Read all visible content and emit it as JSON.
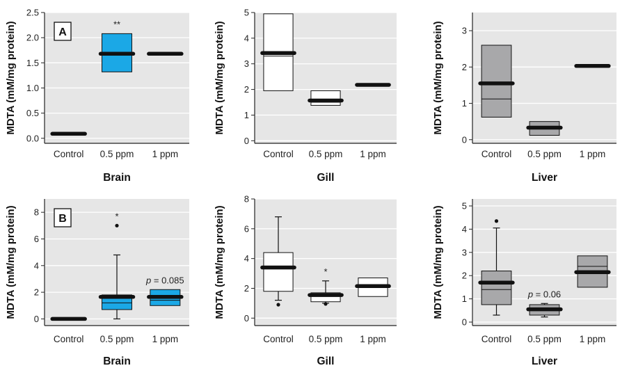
{
  "colors": {
    "plot_bg": "#e6e6e6",
    "grid": "#ffffff",
    "brain_fill": "#1ba8e6",
    "gill_fill": "#ffffff",
    "liver_fill": "#a8a8aa",
    "mean_bar": "#111111"
  },
  "chart_data": [
    {
      "type": "box",
      "panel_label": "A",
      "xlabel": "Brain",
      "ylabel": "MDTA (mM/mg protein)",
      "ylim": [
        -0.1,
        2.5
      ],
      "yticks": [
        0,
        0.5,
        1,
        1.5,
        2,
        2.5
      ],
      "ytick_labels": [
        "0.0",
        "0.5",
        "1.0",
        "1.5",
        "2.0",
        "2.5"
      ],
      "categories": [
        "Control",
        "0.5 ppm",
        "1 ppm"
      ],
      "grid": true,
      "boxes": [
        {
          "q1": 0.09,
          "median": 0.09,
          "q3": 0.09,
          "mean": 0.09
        },
        {
          "q1": 1.32,
          "median": 1.68,
          "q3": 2.08,
          "mean": 1.68,
          "annotation": "**"
        },
        {
          "q1": 1.68,
          "median": 1.68,
          "q3": 1.68,
          "mean": 1.68
        }
      ]
    },
    {
      "type": "box",
      "panel_label": "",
      "xlabel": "Gill",
      "ylabel": "MDTA (mM/mg protein)",
      "ylim": [
        -0.1,
        5
      ],
      "yticks": [
        0,
        1,
        2,
        3,
        4,
        5
      ],
      "ytick_labels": [
        "0",
        "1",
        "2",
        "3",
        "4",
        "5"
      ],
      "categories": [
        "Control",
        "0.5 ppm",
        "1 ppm"
      ],
      "grid": true,
      "boxes": [
        {
          "q1": 1.95,
          "median": 3.3,
          "q3": 4.95,
          "mean": 3.42
        },
        {
          "q1": 1.38,
          "median": 1.5,
          "q3": 1.95,
          "mean": 1.57
        },
        {
          "q1": 2.18,
          "median": 2.18,
          "q3": 2.18,
          "mean": 2.18
        }
      ]
    },
    {
      "type": "box",
      "panel_label": "",
      "xlabel": "Liver",
      "ylabel": "MDTA (mM/mg protein)",
      "ylim": [
        -0.1,
        3.5
      ],
      "yticks": [
        0,
        1,
        2,
        3
      ],
      "ytick_labels": [
        "0",
        "1",
        "2",
        "3"
      ],
      "categories": [
        "Control",
        "0.5 ppm",
        "1 ppm"
      ],
      "grid": true,
      "boxes": [
        {
          "q1": 0.62,
          "median": 1.12,
          "q3": 2.6,
          "mean": 1.55
        },
        {
          "q1": 0.12,
          "median": 0.3,
          "q3": 0.5,
          "mean": 0.33
        },
        {
          "q1": 2.03,
          "median": 2.03,
          "q3": 2.03,
          "mean": 2.03
        }
      ]
    },
    {
      "type": "box",
      "panel_label": "B",
      "xlabel": "Brain",
      "ylabel": "MDTA (mM/mg protein)",
      "ylim": [
        -0.5,
        9
      ],
      "yticks": [
        0,
        2,
        4,
        6,
        8
      ],
      "ytick_labels": [
        "0",
        "2",
        "4",
        "6",
        "8"
      ],
      "categories": [
        "Control",
        "0.5 ppm",
        "1 ppm"
      ],
      "grid": true,
      "boxes": [
        {
          "q1": 0,
          "median": 0,
          "q3": 0,
          "mean": 0
        },
        {
          "q1": 0.7,
          "median": 1.2,
          "q3": 1.8,
          "mean": 1.65,
          "whisker_low": 0,
          "whisker_high": 4.8,
          "outliers": [
            7.0
          ],
          "annotation": "*"
        },
        {
          "q1": 1.0,
          "median": 1.4,
          "q3": 2.2,
          "mean": 1.65,
          "annotation": "p = 0.085"
        }
      ]
    },
    {
      "type": "box",
      "panel_label": "",
      "xlabel": "Gill",
      "ylabel": "MDTA (mM/mg protein)",
      "ylim": [
        -0.5,
        8
      ],
      "yticks": [
        0,
        2,
        4,
        6,
        8
      ],
      "ytick_labels": [
        "0",
        "2",
        "4",
        "6",
        "8"
      ],
      "categories": [
        "Control",
        "0.5 ppm",
        "1 ppm"
      ],
      "grid": true,
      "boxes": [
        {
          "q1": 1.8,
          "median": 3.3,
          "q3": 4.4,
          "mean": 3.4,
          "whisker_low": 1.2,
          "whisker_high": 6.8,
          "outliers": [
            0.9
          ]
        },
        {
          "q1": 1.1,
          "median": 1.55,
          "q3": 1.7,
          "mean": 1.55,
          "whisker_low": 1.0,
          "whisker_high": 2.5,
          "outliers": [
            0.95
          ],
          "annotation": "*"
        },
        {
          "q1": 1.45,
          "median": 2.1,
          "q3": 2.7,
          "mean": 2.15
        }
      ]
    },
    {
      "type": "box",
      "panel_label": "",
      "xlabel": "Liver",
      "ylabel": "MDTA (mM/mg protein)",
      "ylim": [
        -0.15,
        5.3
      ],
      "yticks": [
        0,
        1,
        2,
        3,
        4,
        5
      ],
      "ytick_labels": [
        "0",
        "1",
        "2",
        "3",
        "4",
        "5"
      ],
      "categories": [
        "Control",
        "0.5 ppm",
        "1 ppm"
      ],
      "grid": true,
      "boxes": [
        {
          "q1": 0.75,
          "median": 1.4,
          "q3": 2.2,
          "mean": 1.7,
          "whisker_low": 0.3,
          "whisker_high": 4.05,
          "outliers": [
            4.35
          ]
        },
        {
          "q1": 0.3,
          "median": 0.6,
          "q3": 0.75,
          "mean": 0.55,
          "whisker_low": 0.22,
          "whisker_high": 0.8,
          "annotation": "p = 0.06"
        },
        {
          "q1": 1.5,
          "median": 2.4,
          "q3": 2.85,
          "mean": 2.15
        }
      ]
    }
  ]
}
